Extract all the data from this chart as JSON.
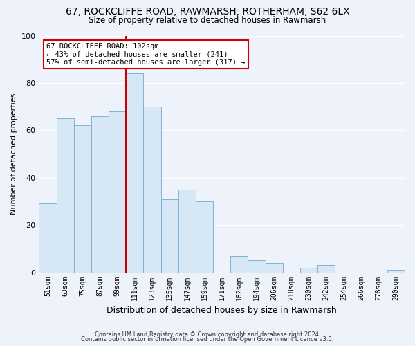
{
  "title": "67, ROCKCLIFFE ROAD, RAWMARSH, ROTHERHAM, S62 6LX",
  "subtitle": "Size of property relative to detached houses in Rawmarsh",
  "xlabel": "Distribution of detached houses by size in Rawmarsh",
  "ylabel": "Number of detached properties",
  "bar_labels": [
    "51sqm",
    "63sqm",
    "75sqm",
    "87sqm",
    "99sqm",
    "111sqm",
    "123sqm",
    "135sqm",
    "147sqm",
    "159sqm",
    "171sqm",
    "182sqm",
    "194sqm",
    "206sqm",
    "218sqm",
    "230sqm",
    "242sqm",
    "254sqm",
    "266sqm",
    "278sqm",
    "290sqm"
  ],
  "bar_values": [
    29,
    65,
    62,
    66,
    68,
    84,
    70,
    31,
    35,
    30,
    0,
    7,
    5,
    4,
    0,
    2,
    3,
    0,
    0,
    0,
    1
  ],
  "bar_color": "#d6e8f5",
  "bar_edge_color": "#7fb3d3",
  "vline_color": "#cc0000",
  "vline_pos": 4.5,
  "annotation_title": "67 ROCKCLIFFE ROAD: 102sqm",
  "annotation_line1": "← 43% of detached houses are smaller (241)",
  "annotation_line2": "57% of semi-detached houses are larger (317) →",
  "annotation_box_facecolor": "#ffffff",
  "annotation_box_edgecolor": "#cc0000",
  "ylim": [
    0,
    100
  ],
  "yticks": [
    0,
    20,
    40,
    60,
    80,
    100
  ],
  "footer1": "Contains HM Land Registry data © Crown copyright and database right 2024.",
  "footer2": "Contains public sector information licensed under the Open Government Licence v3.0.",
  "background_color": "#eef2fa",
  "grid_color": "#ffffff",
  "title_fontsize": 10,
  "subtitle_fontsize": 8.5,
  "ylabel_fontsize": 8,
  "xlabel_fontsize": 9,
  "tick_fontsize": 7,
  "annotation_fontsize": 7.5,
  "footer_fontsize": 6
}
